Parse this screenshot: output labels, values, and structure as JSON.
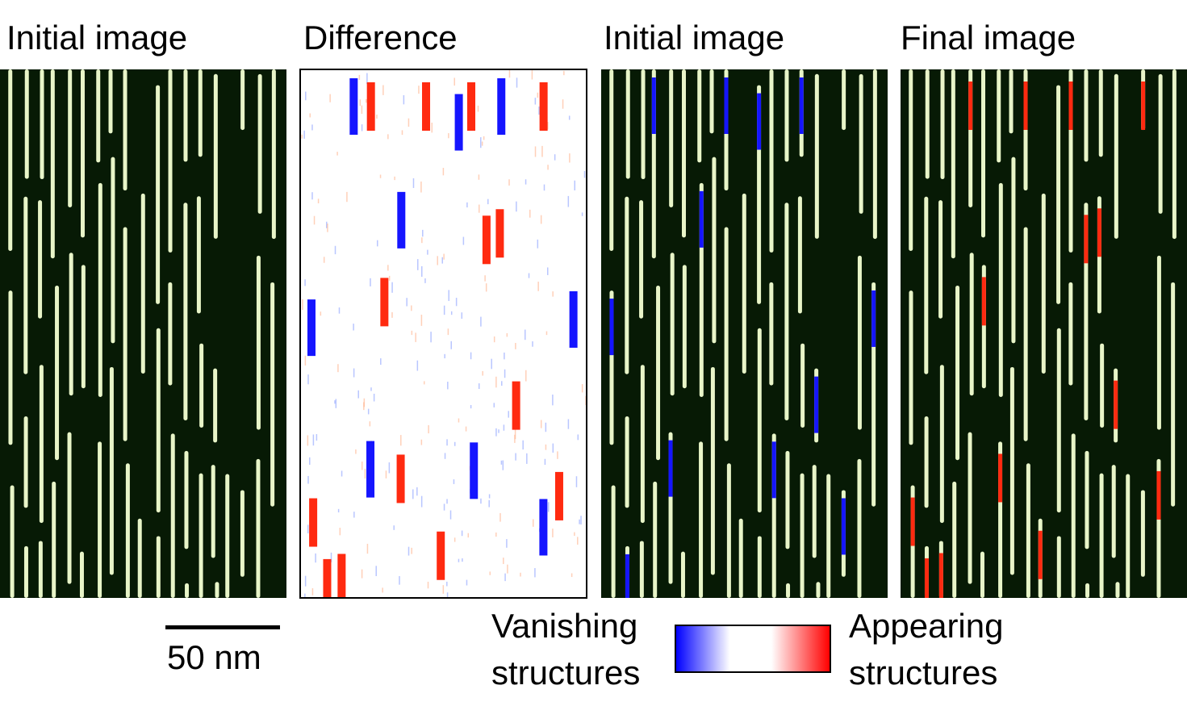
{
  "panels": [
    {
      "label": "Initial image",
      "kind": "afm"
    },
    {
      "label": "Difference",
      "kind": "difference"
    },
    {
      "label": "Initial image",
      "kind": "afm-vanishing"
    },
    {
      "label": "Final image",
      "kind": "afm-appearing"
    }
  ],
  "scale_bar": {
    "label": "50 nm"
  },
  "legend": {
    "left_line1": "Vanishing",
    "left_line2": "structures",
    "right_line1": "Appearing",
    "right_line2": "structures"
  },
  "colors": {
    "background_dark": "#071a05",
    "structure": "#e8f5c8",
    "vanishing": "#1515ff",
    "appearing": "#ff2a10",
    "difference_bg": "#ffffff",
    "colorbar_gradient": [
      "#0000ff",
      "#ffffff",
      "#ffffff",
      "#ff0000"
    ]
  }
}
